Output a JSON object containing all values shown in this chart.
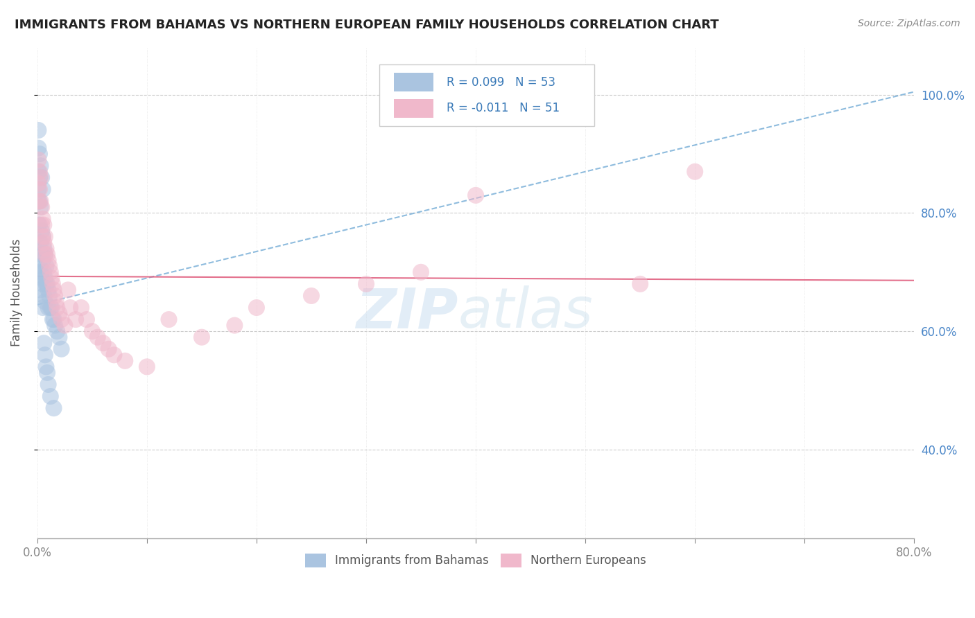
{
  "title": "IMMIGRANTS FROM BAHAMAS VS NORTHERN EUROPEAN FAMILY HOUSEHOLDS CORRELATION CHART",
  "source": "Source: ZipAtlas.com",
  "ylabel": "Family Households",
  "legend_label1": "Immigrants from Bahamas",
  "legend_label2": "Northern Europeans",
  "R1": 0.099,
  "N1": 53,
  "R2": -0.011,
  "N2": 51,
  "blue_color": "#aac4e0",
  "pink_color": "#f0b8cb",
  "blue_line_color": "#7ab0d8",
  "pink_line_color": "#e06080",
  "watermark_zip": "ZIP",
  "watermark_atlas": "atlas",
  "xlim": [
    0.0,
    0.8
  ],
  "ylim": [
    0.25,
    1.08
  ],
  "ytick_vals": [
    0.4,
    0.6,
    0.8,
    1.0
  ],
  "ytick_labels": [
    "40.0%",
    "60.0%",
    "80.0%",
    "100.0%"
  ],
  "blue_x": [
    0.001,
    0.001,
    0.001,
    0.001,
    0.002,
    0.002,
    0.002,
    0.002,
    0.002,
    0.003,
    0.003,
    0.003,
    0.003,
    0.004,
    0.004,
    0.004,
    0.005,
    0.005,
    0.005,
    0.005,
    0.006,
    0.006,
    0.006,
    0.007,
    0.007,
    0.007,
    0.008,
    0.008,
    0.009,
    0.01,
    0.01,
    0.011,
    0.012,
    0.013,
    0.014,
    0.015,
    0.016,
    0.018,
    0.02,
    0.022,
    0.001,
    0.001,
    0.002,
    0.003,
    0.004,
    0.005,
    0.006,
    0.007,
    0.008,
    0.009,
    0.01,
    0.012,
    0.015
  ],
  "blue_y": [
    0.87,
    0.84,
    0.82,
    0.78,
    0.86,
    0.82,
    0.78,
    0.75,
    0.71,
    0.81,
    0.75,
    0.7,
    0.67,
    0.77,
    0.73,
    0.69,
    0.76,
    0.72,
    0.68,
    0.64,
    0.74,
    0.7,
    0.66,
    0.73,
    0.69,
    0.65,
    0.71,
    0.68,
    0.68,
    0.67,
    0.64,
    0.66,
    0.64,
    0.64,
    0.62,
    0.62,
    0.61,
    0.6,
    0.59,
    0.57,
    0.94,
    0.91,
    0.9,
    0.88,
    0.86,
    0.84,
    0.58,
    0.56,
    0.54,
    0.53,
    0.51,
    0.49,
    0.47
  ],
  "pink_x": [
    0.001,
    0.001,
    0.001,
    0.002,
    0.002,
    0.003,
    0.003,
    0.004,
    0.004,
    0.005,
    0.005,
    0.006,
    0.006,
    0.007,
    0.007,
    0.008,
    0.009,
    0.01,
    0.011,
    0.012,
    0.013,
    0.014,
    0.015,
    0.016,
    0.017,
    0.018,
    0.02,
    0.022,
    0.025,
    0.028,
    0.03,
    0.035,
    0.04,
    0.045,
    0.05,
    0.055,
    0.06,
    0.065,
    0.07,
    0.08,
    0.1,
    0.12,
    0.15,
    0.18,
    0.2,
    0.25,
    0.3,
    0.35,
    0.4,
    0.6,
    0.55
  ],
  "pink_y": [
    0.89,
    0.85,
    0.82,
    0.87,
    0.84,
    0.86,
    0.82,
    0.81,
    0.78,
    0.79,
    0.76,
    0.78,
    0.75,
    0.76,
    0.73,
    0.74,
    0.73,
    0.72,
    0.71,
    0.7,
    0.69,
    0.68,
    0.67,
    0.66,
    0.65,
    0.64,
    0.63,
    0.62,
    0.61,
    0.67,
    0.64,
    0.62,
    0.64,
    0.62,
    0.6,
    0.59,
    0.58,
    0.57,
    0.56,
    0.55,
    0.54,
    0.62,
    0.59,
    0.61,
    0.64,
    0.66,
    0.68,
    0.7,
    0.83,
    0.87,
    0.68
  ],
  "blue_line_x0": 0.0,
  "blue_line_y0": 0.645,
  "blue_line_x1": 0.8,
  "blue_line_y1": 1.005,
  "pink_line_x0": 0.0,
  "pink_line_y0": 0.693,
  "pink_line_x1": 0.8,
  "pink_line_y1": 0.686
}
